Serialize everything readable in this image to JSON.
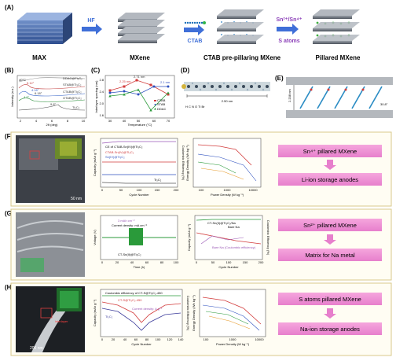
{
  "panels": {
    "A": {
      "label": "(A)",
      "steps": [
        "MAX",
        "MXene",
        "CTAB pre-pillaring MXene",
        "Pillared MXene"
      ],
      "arrows": [
        "HF",
        "CTAB",
        "Sn²⁺/Sn⁴⁺",
        "S atoms"
      ]
    },
    "B": {
      "label": "(B)",
      "temp": "40°C",
      "curves": [
        "DDAC@Ti₃C₂",
        "STAB@Ti₃C₂",
        "CTAB@Ti₃C₂",
        "OTAB@Ti₃C₂",
        "Ti₃C₂"
      ],
      "angles": [
        "5.12°",
        "4.18°",
        "4.9°",
        "6.18°",
        "9.8°"
      ],
      "xlabel": "2θ (deg)",
      "ylabel": "Intensity (a.u.)",
      "xticks": [
        "2",
        "4",
        "6",
        "8",
        "10"
      ]
    },
    "C": {
      "label": "(C)",
      "ylabel": "Interlayer spacing (nm)",
      "xlabel": "Temperature (°C)",
      "xticks": [
        "30",
        "40",
        "50",
        "60",
        "70"
      ],
      "yticks": [
        "1.6",
        "2.0",
        "2.4",
        "2.8"
      ],
      "annotations": [
        "2.71 nm",
        "2.25 nm",
        "2.1 nm"
      ],
      "legend": [
        "CTAB",
        "STAB",
        "DDAC"
      ]
    },
    "D": {
      "label": "(D)",
      "scale": "2.50 nm",
      "atoms": "H  C  N  O  Ti  Br"
    },
    "E": {
      "label": "(E)",
      "height": "2.208 nm",
      "angle": "30.8°"
    },
    "F": {
      "label": "(F)",
      "tem_scale": "50 nm",
      "cap_chart": {
        "ylabel": "Capacity (mAh g⁻¹)",
        "y2label": "Coulombic Efficiency (%)",
        "xlabel": "Cycle Number",
        "xticks": [
          "0",
          "50",
          "100",
          "150",
          "200"
        ],
        "legend": [
          "CE of CTAB-Sn(IV)@Ti₃C₂",
          "CTAB-Sn(IV)@Ti₃C₂",
          "Sn(IV)@Ti₃C₂"
        ],
        "note": "Ti₃C₂"
      },
      "ragone": {
        "ylabel": "Energy Density (Wh kg⁻¹)",
        "xlabel": "Power Density (W kg⁻¹)",
        "xticks": [
          "100",
          "1000",
          "10000"
        ]
      },
      "box": [
        "Sn⁴⁺ pillared MXene",
        "Li-ion storage anodes"
      ]
    },
    "G": {
      "label": "(G)",
      "volt_chart": {
        "ylabel": "Voltage (V)",
        "xlabel": "Time (h)",
        "xticks": [
          "0",
          "20",
          "40",
          "60",
          "80",
          "100"
        ],
        "current": "3 mAh cm⁻²",
        "density": "Current density: mA cm⁻²",
        "sample": "CT-Sn(II)@Ti₃C₂"
      },
      "cap_chart": {
        "ylabel": "Capacity (mAh g⁻¹)",
        "y2label": "Coulombic Efficiency (%)",
        "xlabel": "Cycle Number",
        "xticks": [
          "0",
          "50",
          "100",
          "150",
          "200"
        ],
        "legend": [
          "CT-Sn(II)@Ti₃C₂/Na",
          "Bare Na"
        ],
        "note": "Bare Na (Coulombic efficiency)"
      },
      "box": [
        "Sn²⁺ pillared MXene",
        "Matrix for Na metal"
      ]
    },
    "H": {
      "label": "(H)",
      "tem_scale": "200 nm",
      "interlayer": "interlayer",
      "cap_chart": {
        "ylabel": "Capacity (mAh g⁻¹)",
        "y2label": "Coulombic Efficiency (%)",
        "xlabel": "Cycle Number",
        "xticks": [
          "0",
          "20",
          "40",
          "60",
          "80",
          "100",
          "120",
          "140"
        ],
        "legend": [
          "Coulombic efficiency of CT-S@Ti₃C₂-450",
          "CT-S@Ti₃C₂-450",
          "Ti₃C₂"
        ],
        "note": "Current density: A g⁻¹"
      },
      "ragone": {
        "ylabel": "Energy Density (Wh kg⁻¹)",
        "xlabel": "Power Density (W kg⁻¹)",
        "xticks": [
          "100",
          "1000",
          "10000"
        ]
      },
      "box": [
        "S atoms pillared MXene",
        "Na-ion storage anodes"
      ]
    }
  }
}
